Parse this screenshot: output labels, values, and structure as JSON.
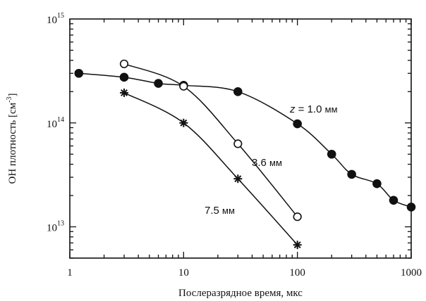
{
  "chart_data": {
    "type": "scatter",
    "title": "",
    "xlabel": "Послеразрядное время, мкс",
    "ylabel": "OH плотность [см⁻³]",
    "ylabel_parts": {
      "base": "OH плотность [см",
      "exp": "-3",
      "close": "]"
    },
    "xscale": "log",
    "yscale": "log",
    "xlim": [
      1,
      1000
    ],
    "ylim": [
      5000000000000.0,
      1000000000000000.0
    ],
    "grid": false,
    "x_ticks": [
      {
        "value": 1,
        "label": "1"
      },
      {
        "value": 10,
        "label": "10"
      },
      {
        "value": 100,
        "label": "100"
      },
      {
        "value": 1000,
        "label": "1000"
      }
    ],
    "y_ticks": [
      {
        "value": 10000000000000.0,
        "base": "10",
        "exp": "13"
      },
      {
        "value": 100000000000000.0,
        "base": "10",
        "exp": "14"
      },
      {
        "value": 1000000000000000.0,
        "base": "10",
        "exp": "15"
      }
    ],
    "series": [
      {
        "name": "z = 1.0 мм",
        "label_parts": {
          "var": "z",
          "rest": " = 1.0 ",
          "unit": "мм"
        },
        "marker": "filled-circle",
        "x": [
          1.2,
          3,
          6,
          10,
          30,
          100,
          200,
          300,
          500,
          700,
          1000
        ],
        "y": [
          300000000000000.0,
          275000000000000.0,
          240000000000000.0,
          230000000000000.0,
          200000000000000.0,
          98000000000000.0,
          50000000000000.0,
          32000000000000.0,
          26000000000000.0,
          18000000000000.0,
          15500000000000.0
        ]
      },
      {
        "name": "3.6 мм",
        "label_parts": {
          "var": "",
          "rest": "3.6 ",
          "unit": "мм"
        },
        "marker": "open-circle",
        "x": [
          3,
          10,
          30,
          100
        ],
        "y": [
          370000000000000.0,
          225000000000000.0,
          63000000000000.0,
          12500000000000.0
        ]
      },
      {
        "name": "7.5 мм",
        "label_parts": {
          "var": "",
          "rest": "7.5 ",
          "unit": "мм"
        },
        "marker": "asterisk",
        "x": [
          3,
          10,
          30,
          100
        ],
        "y": [
          195000000000000.0,
          100000000000000.0,
          29000000000000.0,
          6700000000000.0
        ]
      }
    ]
  }
}
